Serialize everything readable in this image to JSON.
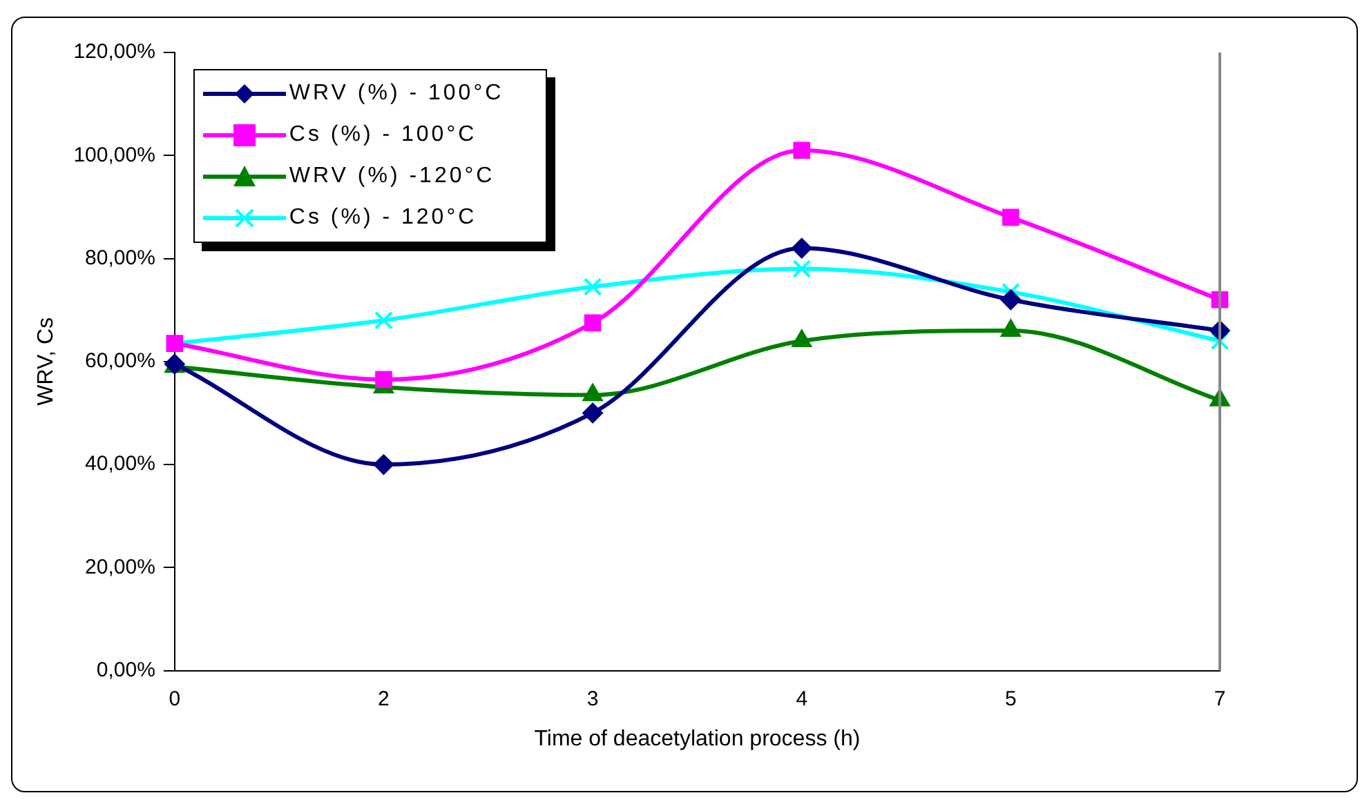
{
  "chart_data": {
    "type": "line",
    "xlabel": "Time of deacetylation process (h)",
    "ylabel": "WRV, Cs",
    "categories": [
      "0",
      "2",
      "3",
      "4",
      "5",
      "7"
    ],
    "ylim": [
      0,
      120
    ],
    "yticks": [
      {
        "value": 0,
        "label": "0,00%"
      },
      {
        "value": 20,
        "label": "20,00%"
      },
      {
        "value": 40,
        "label": "40,00%"
      },
      {
        "value": 60,
        "label": "60,00%"
      },
      {
        "value": 80,
        "label": "80,00%"
      },
      {
        "value": 100,
        "label": "100,00%"
      },
      {
        "value": 120,
        "label": "120,00%"
      }
    ],
    "grid": false,
    "legend": "top left",
    "series": [
      {
        "name": "WRV (%) - 100°C",
        "color": "#000080",
        "marker": "diamond",
        "values": [
          59.5,
          40,
          50,
          82,
          72,
          66
        ]
      },
      {
        "name": "Cs (%) - 100°C",
        "color": "#ff00ff",
        "marker": "square",
        "values": [
          63.5,
          56.5,
          67.5,
          101,
          88,
          72
        ]
      },
      {
        "name": "WRV (%) -120°C",
        "color": "#008000",
        "marker": "triangle",
        "values": [
          59,
          55,
          53.5,
          64,
          66,
          52.5
        ]
      },
      {
        "name": "Cs (%) - 120°C",
        "color": "#00ffff",
        "marker": "cross",
        "values": [
          63.5,
          68,
          74.5,
          78,
          73.5,
          64
        ]
      }
    ]
  }
}
